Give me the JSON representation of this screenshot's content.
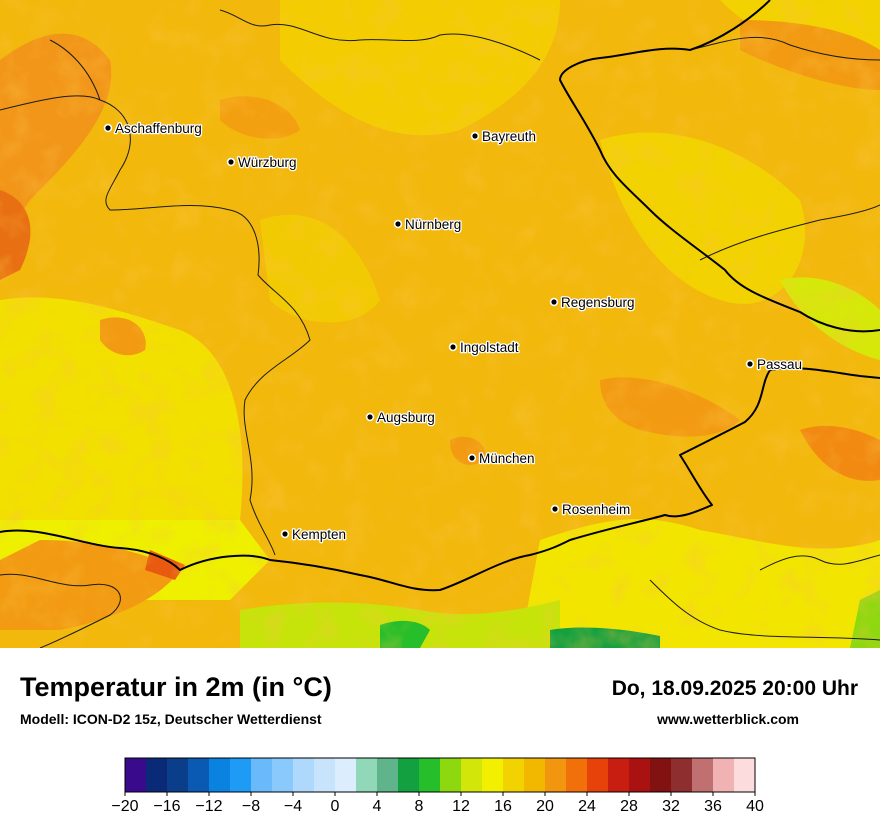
{
  "header": {
    "title": "Temperatur in 2m (in °C)",
    "subtitle": "Modell: ICON-D2 15z, Deutscher Wetterdienst",
    "datetime": "Do, 18.09.2025 20:00 Uhr",
    "website": "www.wetterblick.com"
  },
  "map": {
    "variable": "2 m temperature",
    "unit": "°C",
    "cities": [
      {
        "name": "Aschaffenburg"
      },
      {
        "name": "Würzburg"
      },
      {
        "name": "Bayreuth"
      },
      {
        "name": "Nürnberg"
      },
      {
        "name": "Regensburg"
      },
      {
        "name": "Ingolstadt"
      },
      {
        "name": "Passau"
      },
      {
        "name": "Augsburg"
      },
      {
        "name": "München"
      },
      {
        "name": "Rosenheim"
      },
      {
        "name": "Kempten"
      }
    ]
  },
  "legend": {
    "tick_labels": [
      "−20",
      "−16",
      "−12",
      "−8",
      "−4",
      "0",
      "4",
      "8",
      "12",
      "16",
      "20",
      "24",
      "28",
      "32",
      "36",
      "40"
    ],
    "min": -20,
    "max": 40,
    "step": 2,
    "colors": [
      "#3a0a8c",
      "#0a2a78",
      "#0a3e8a",
      "#0a5ab4",
      "#0a82e0",
      "#1e9bf5",
      "#6ab9fa",
      "#8ac9fb",
      "#aed8fc",
      "#c8e4fd",
      "#dcedfe",
      "#90d8b8",
      "#60b48c",
      "#12a040",
      "#26be2a",
      "#8ed810",
      "#d2e60a",
      "#f2f000",
      "#f2d200",
      "#f2b800",
      "#f29610",
      "#f2700a",
      "#e6420a",
      "#c81e12",
      "#aa1212",
      "#821212",
      "#8e2e2e",
      "#c07070",
      "#f0b2b2",
      "#fcdcdc"
    ]
  }
}
